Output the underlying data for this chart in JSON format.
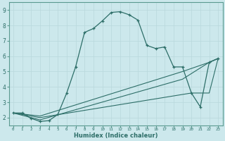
{
  "title": "",
  "xlabel": "Humidex (Indice chaleur)",
  "ylabel": "",
  "background_color": "#cce8ec",
  "line_color": "#2d6e68",
  "xlim": [
    -0.5,
    23.5
  ],
  "ylim": [
    1.5,
    9.5
  ],
  "yticks": [
    2,
    3,
    4,
    5,
    6,
    7,
    8,
    9
  ],
  "xticks": [
    0,
    1,
    2,
    3,
    4,
    5,
    6,
    7,
    8,
    9,
    10,
    11,
    12,
    13,
    14,
    15,
    16,
    17,
    18,
    19,
    20,
    21,
    22,
    23
  ],
  "series": [
    {
      "x": [
        0,
        1,
        2,
        3,
        4,
        5,
        6,
        7,
        8,
        9,
        10,
        11,
        12,
        13,
        14,
        15,
        16,
        17,
        18,
        19,
        20,
        21,
        22,
        23
      ],
      "y": [
        2.3,
        2.3,
        1.95,
        1.75,
        1.8,
        2.2,
        3.6,
        5.3,
        7.55,
        7.8,
        8.3,
        8.85,
        8.9,
        8.7,
        8.35,
        6.7,
        6.5,
        6.6,
        5.3,
        5.3,
        3.6,
        2.7,
        5.6,
        5.85
      ],
      "marker": true
    },
    {
      "x": [
        0,
        3,
        19,
        22,
        23
      ],
      "y": [
        2.3,
        2.1,
        5.0,
        5.6,
        5.85
      ],
      "marker": false
    },
    {
      "x": [
        0,
        3,
        19,
        22,
        23
      ],
      "y": [
        2.3,
        1.85,
        4.5,
        5.6,
        5.85
      ],
      "marker": false
    },
    {
      "x": [
        0,
        3,
        20,
        22,
        23
      ],
      "y": [
        2.3,
        2.0,
        3.6,
        3.6,
        5.85
      ],
      "marker": false
    }
  ]
}
